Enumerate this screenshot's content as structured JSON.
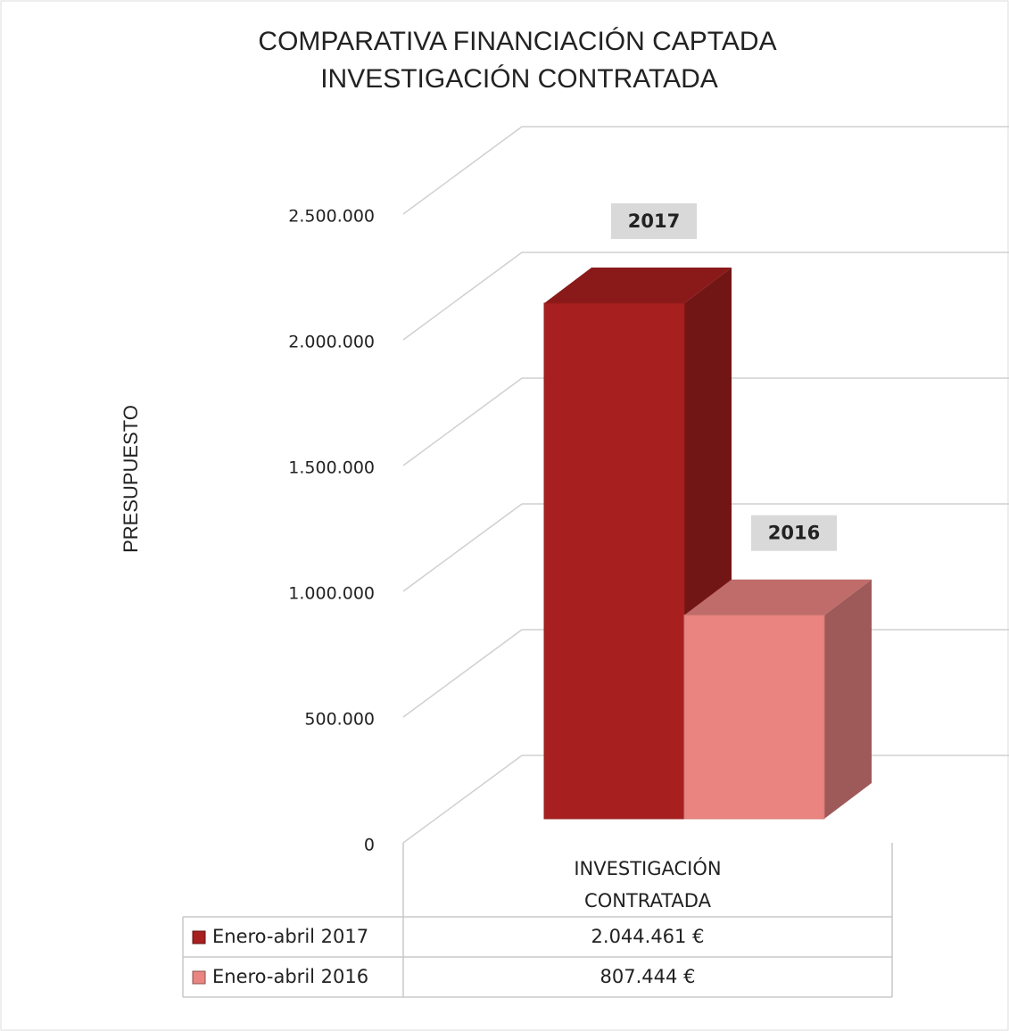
{
  "chart_data": {
    "type": "bar3d",
    "title": [
      "COMPARATIVA FINANCIACIÓN CAPTADA",
      "INVESTIGACIÓN CONTRATADA"
    ],
    "ylabel": "PRESUPUESTO",
    "categories": [
      "INVESTIGACIÓN CONTRATADA"
    ],
    "series": [
      {
        "name": "Enero-abril 2017",
        "color": "#a81f1f",
        "values": [
          2044461
        ],
        "value_labels": [
          "2.044.461 €"
        ],
        "annotation": "2017"
      },
      {
        "name": "Enero-abril 2016",
        "color": "#e98481",
        "values": [
          807444
        ],
        "value_labels": [
          "807.444 €"
        ],
        "annotation": "2016"
      }
    ],
    "ylim": [
      0,
      2500000
    ],
    "yticks": [
      0,
      {
        "value": 500000,
        "label": "500.000"
      },
      {
        "value": 1000000,
        "label": "1.000.000"
      },
      {
        "value": 1500000,
        "label": "1.500.000"
      },
      {
        "value": 2000000,
        "label": "2.000.000"
      },
      {
        "value": 2500000,
        "label": "2.500.000"
      }
    ],
    "grid": true
  }
}
